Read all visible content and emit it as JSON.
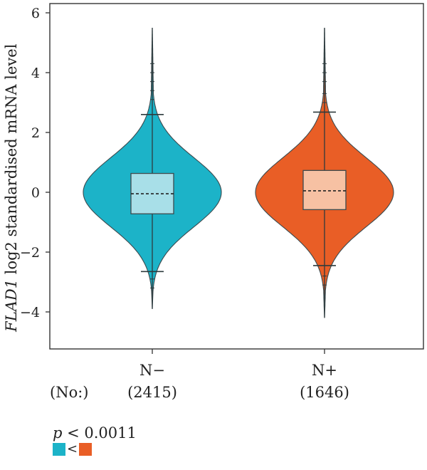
{
  "chart_data": {
    "type": "violin",
    "ylabel_italic": "FLAD1",
    "ylabel_rest": " log2 standardised mRNA level",
    "ylim": [
      -5.3,
      6.3
    ],
    "yticks": [
      6,
      4,
      2,
      0,
      -2,
      -4
    ],
    "ytick_labels": [
      "6",
      "4",
      "2",
      "0",
      "−2",
      "−4"
    ],
    "count_prefix": "(No:)",
    "groups": [
      {
        "name": "N−",
        "count_label": "(2415)",
        "n": 2415,
        "color": "#1cb3c8",
        "box_color": "#a8dfe8",
        "min": -3.9,
        "max": 5.5,
        "whisker_low": -2.65,
        "whisker_high": 2.6,
        "q1": -0.72,
        "median": -0.05,
        "q3": 0.63,
        "outlier_ticks": [
          4.3,
          4.0,
          3.7,
          3.4,
          3.1,
          -2.9,
          -3.2
        ]
      },
      {
        "name": "N+",
        "count_label": "(1646)",
        "n": 1646,
        "color": "#e95e26",
        "box_color": "#f7c1a3",
        "min": -4.2,
        "max": 5.5,
        "whisker_low": -2.45,
        "whisker_high": 2.68,
        "q1": -0.58,
        "median": 0.05,
        "q3": 0.73,
        "outlier_ticks": [
          4.3,
          4.0,
          3.7,
          3.3,
          3.0,
          -2.8,
          -3.1
        ]
      }
    ]
  },
  "legend": {
    "p_symbol": "p",
    "p_value": " < 0.0011",
    "compare_symbol": "<",
    "left_color": "#1cb3c8",
    "right_color": "#e95e26"
  }
}
